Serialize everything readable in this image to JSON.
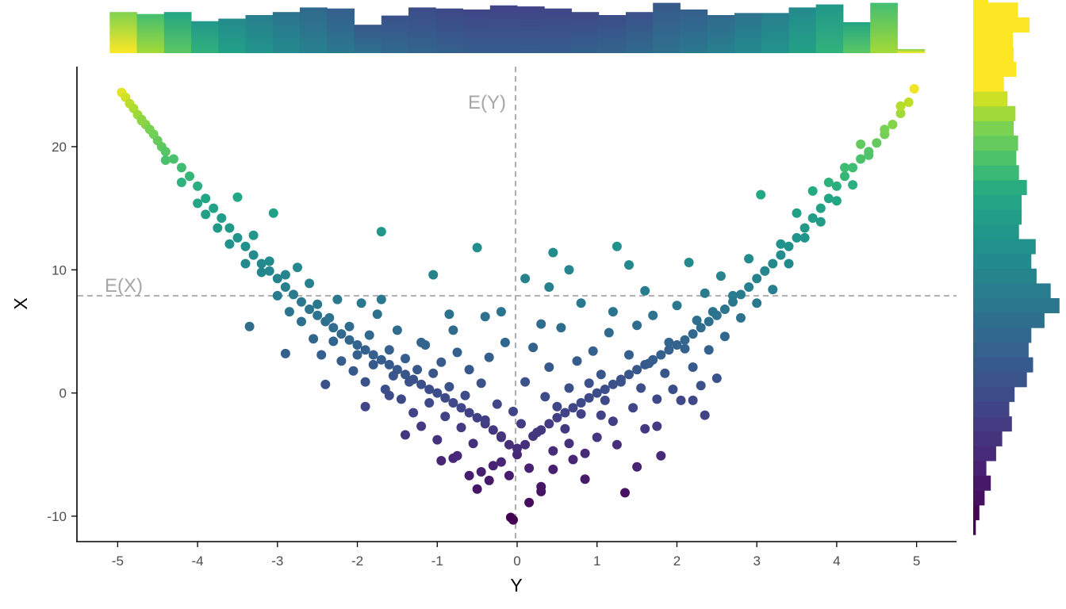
{
  "chart_data": {
    "type": "scatter",
    "subtype": "scatter with marginal histograms",
    "xlabel": "Y",
    "ylabel": "X",
    "xlim": [
      -5.5,
      5.5
    ],
    "ylim": [
      -12,
      26.5
    ],
    "xticks": [
      -5,
      -4,
      -3,
      -2,
      -1,
      0,
      1,
      2,
      3,
      4,
      5
    ],
    "yticks": [
      -10,
      0,
      10,
      20
    ],
    "grid": false,
    "legend": "none",
    "color_scale": "viridis",
    "color_mapped_to": "X",
    "reference_lines": [
      {
        "orientation": "vertical",
        "value": 0,
        "label": "E(Y)"
      },
      {
        "orientation": "horizontal",
        "value": 8,
        "label": "E(X)"
      }
    ],
    "relationship": "X ≈ Y^2 (approx., data spread below the curve near Y = 0)",
    "points": [
      [
        -4.95,
        24.4
      ],
      [
        -4.9,
        24
      ],
      [
        -4.85,
        23.5
      ],
      [
        -4.8,
        23.1
      ],
      [
        -4.75,
        22.6
      ],
      [
        -4.7,
        22.2
      ],
      [
        -4.65,
        21.8
      ],
      [
        -4.6,
        21.4
      ],
      [
        -4.55,
        21
      ],
      [
        -4.5,
        20.5
      ],
      [
        -4.45,
        20
      ],
      [
        -4.4,
        19.6
      ],
      [
        -4.3,
        19
      ],
      [
        -4.2,
        18.3
      ],
      [
        -4.1,
        17.6
      ],
      [
        -4,
        16.8
      ],
      [
        -3.9,
        15.8
      ],
      [
        -3.8,
        15
      ],
      [
        -3.7,
        14.2
      ],
      [
        -3.6,
        13.4
      ],
      [
        -3.5,
        12.6
      ],
      [
        -3.4,
        11.9
      ],
      [
        -3.3,
        11.2
      ],
      [
        -3.2,
        10.5
      ],
      [
        -3.1,
        9.9
      ],
      [
        -3,
        9.3
      ],
      [
        -2.9,
        8.6
      ],
      [
        -2.8,
        8
      ],
      [
        -2.7,
        7.4
      ],
      [
        -2.6,
        6.8
      ],
      [
        -2.5,
        6.3
      ],
      [
        -2.4,
        5.8
      ],
      [
        -2.3,
        5.3
      ],
      [
        -2.2,
        4.8
      ],
      [
        -2.1,
        4.3
      ],
      [
        -2,
        3.9
      ],
      [
        -1.9,
        3.5
      ],
      [
        -1.8,
        3.1
      ],
      [
        -1.7,
        2.7
      ],
      [
        -1.6,
        2.3
      ],
      [
        -1.5,
        1.9
      ],
      [
        -1.4,
        1.5
      ],
      [
        -1.3,
        1.1
      ],
      [
        -1.2,
        0.7
      ],
      [
        -1.1,
        0.3
      ],
      [
        -1,
        0
      ],
      [
        -0.9,
        -0.4
      ],
      [
        -0.8,
        -0.8
      ],
      [
        -0.7,
        -1.2
      ],
      [
        -0.6,
        -1.6
      ],
      [
        -0.5,
        -2
      ],
      [
        -0.4,
        -2.5
      ],
      [
        -0.3,
        -3
      ],
      [
        -0.2,
        -3.5
      ],
      [
        -0.1,
        -4.2
      ],
      [
        0,
        -5
      ],
      [
        0.1,
        -4.2
      ],
      [
        0.2,
        -3.5
      ],
      [
        0.3,
        -3
      ],
      [
        0.4,
        -2.5
      ],
      [
        0.5,
        -2
      ],
      [
        0.6,
        -1.6
      ],
      [
        0.7,
        -1.2
      ],
      [
        0.8,
        -0.8
      ],
      [
        0.9,
        -0.4
      ],
      [
        1,
        0
      ],
      [
        1.1,
        0.3
      ],
      [
        1.2,
        0.7
      ],
      [
        1.3,
        1.1
      ],
      [
        1.4,
        1.5
      ],
      [
        1.5,
        1.9
      ],
      [
        1.6,
        2.3
      ],
      [
        1.7,
        2.7
      ],
      [
        1.8,
        3.1
      ],
      [
        1.9,
        3.5
      ],
      [
        2,
        3.9
      ],
      [
        2.1,
        4.3
      ],
      [
        2.2,
        4.8
      ],
      [
        2.3,
        5.3
      ],
      [
        2.4,
        5.8
      ],
      [
        2.5,
        6.3
      ],
      [
        2.6,
        6.8
      ],
      [
        2.7,
        7.4
      ],
      [
        2.8,
        8
      ],
      [
        2.9,
        8.6
      ],
      [
        3,
        9.3
      ],
      [
        3.1,
        9.9
      ],
      [
        3.2,
        10.5
      ],
      [
        3.3,
        11.2
      ],
      [
        3.4,
        11.9
      ],
      [
        3.5,
        12.6
      ],
      [
        3.6,
        13.4
      ],
      [
        3.7,
        14.2
      ],
      [
        3.8,
        15
      ],
      [
        3.9,
        15.8
      ],
      [
        4,
        16.8
      ],
      [
        4.1,
        17.6
      ],
      [
        4.2,
        18.3
      ],
      [
        4.3,
        19
      ],
      [
        4.4,
        19.6
      ],
      [
        4.5,
        20.3
      ],
      [
        4.6,
        21
      ],
      [
        4.7,
        21.8
      ],
      [
        4.8,
        22.7
      ],
      [
        4.9,
        23.6
      ],
      [
        4.97,
        24.7
      ],
      [
        -4.7,
        22.1
      ],
      [
        -4.4,
        18.9
      ],
      [
        -4.2,
        17.1
      ],
      [
        -4,
        15.4
      ],
      [
        -3.9,
        14.5
      ],
      [
        -3.75,
        13.4
      ],
      [
        -3.6,
        12.1
      ],
      [
        -3.5,
        15.9
      ],
      [
        -3.4,
        10.5
      ],
      [
        -3.3,
        12.8
      ],
      [
        -3.2,
        9.8
      ],
      [
        -3.1,
        10.7
      ],
      [
        -3,
        7.9
      ],
      [
        -3.05,
        14.6
      ],
      [
        -2.9,
        9.6
      ],
      [
        -2.85,
        6.6
      ],
      [
        -2.75,
        10.2
      ],
      [
        -2.7,
        5.8
      ],
      [
        -2.6,
        8.9
      ],
      [
        -2.55,
        4.4
      ],
      [
        -2.5,
        7.2
      ],
      [
        -2.45,
        3.1
      ],
      [
        -2.35,
        6.1
      ],
      [
        -2.3,
        4.2
      ],
      [
        -2.25,
        7.6
      ],
      [
        -2.2,
        2.6
      ],
      [
        -2.1,
        5.4
      ],
      [
        -2.05,
        1.8
      ],
      [
        -2,
        3.1
      ],
      [
        -1.95,
        7.3
      ],
      [
        -1.9,
        0.9
      ],
      [
        -1.85,
        4.7
      ],
      [
        -1.8,
        2.3
      ],
      [
        -1.75,
        6.4
      ],
      [
        -1.7,
        13.1
      ],
      [
        -1.65,
        0.3
      ],
      [
        -1.6,
        3.5
      ],
      [
        -1.55,
        1.4
      ],
      [
        -1.5,
        5.1
      ],
      [
        -1.45,
        -0.5
      ],
      [
        -1.4,
        2.8
      ],
      [
        -1.35,
        0.9
      ],
      [
        -1.3,
        -1.6
      ],
      [
        -1.25,
        1.9
      ],
      [
        -1.2,
        -2.7
      ],
      [
        -1.15,
        3.9
      ],
      [
        -1.1,
        -0.8
      ],
      [
        -1.05,
        1.6
      ],
      [
        -1,
        -3.8
      ],
      [
        -0.95,
        2.5
      ],
      [
        -0.9,
        -1.9
      ],
      [
        -0.85,
        0.5
      ],
      [
        -0.8,
        -5.3
      ],
      [
        -0.75,
        3.3
      ],
      [
        -0.7,
        -2.8
      ],
      [
        -0.65,
        -0.2
      ],
      [
        -0.6,
        1.9
      ],
      [
        -0.55,
        -4.1
      ],
      [
        -0.5,
        -7.8
      ],
      [
        -0.45,
        0.8
      ],
      [
        -0.4,
        -2.2
      ],
      [
        -0.35,
        2.9
      ],
      [
        -0.3,
        -5.9
      ],
      [
        -0.25,
        -0.9
      ],
      [
        -0.2,
        -3.6
      ],
      [
        -0.15,
        4.1
      ],
      [
        -0.1,
        -6.7
      ],
      [
        -0.08,
        -10.1
      ],
      [
        -0.05,
        -1.5
      ],
      [
        0.05,
        -2.5
      ],
      [
        0.1,
        0.9
      ],
      [
        0.15,
        -6.1
      ],
      [
        0.2,
        3.7
      ],
      [
        0.25,
        -3.2
      ],
      [
        0.3,
        -8
      ],
      [
        0.35,
        -0.3
      ],
      [
        0.4,
        2.1
      ],
      [
        0.45,
        -4.7
      ],
      [
        0.5,
        -1.1
      ],
      [
        0.55,
        5.3
      ],
      [
        0.6,
        -2.9
      ],
      [
        0.65,
        0.4
      ],
      [
        0.7,
        -5.4
      ],
      [
        0.75,
        2.6
      ],
      [
        0.8,
        -1.7
      ],
      [
        0.85,
        -7
      ],
      [
        0.9,
        0.8
      ],
      [
        0.95,
        3.4
      ],
      [
        1,
        -3.6
      ],
      [
        1.05,
        1.5
      ],
      [
        1.1,
        -0.6
      ],
      [
        1.15,
        4.9
      ],
      [
        1.2,
        -2.3
      ],
      [
        1.25,
        11.9
      ],
      [
        1.3,
        0.9
      ],
      [
        1.35,
        -8.1
      ],
      [
        1.4,
        3.1
      ],
      [
        1.45,
        -1.2
      ],
      [
        1.5,
        5.5
      ],
      [
        1.55,
        0.4
      ],
      [
        1.6,
        -2.9
      ],
      [
        1.65,
        2.4
      ],
      [
        1.7,
        6.3
      ],
      [
        1.75,
        -0.5
      ],
      [
        1.8,
        -5.1
      ],
      [
        1.85,
        1.6
      ],
      [
        1.9,
        4.1
      ],
      [
        1.95,
        0.3
      ],
      [
        2,
        7.1
      ],
      [
        2.05,
        -0.6
      ],
      [
        2.1,
        3.6
      ],
      [
        2.15,
        10.6
      ],
      [
        2.2,
        2.1
      ],
      [
        2.25,
        5.9
      ],
      [
        2.3,
        0.6
      ],
      [
        2.35,
        8.1
      ],
      [
        2.4,
        3.5
      ],
      [
        2.45,
        6.6
      ],
      [
        2.5,
        1.2
      ],
      [
        2.55,
        9.5
      ],
      [
        2.6,
        4.6
      ],
      [
        2.7,
        7.9
      ],
      [
        2.8,
        6.1
      ],
      [
        2.9,
        10.9
      ],
      [
        3,
        7.3
      ],
      [
        3.05,
        16.1
      ],
      [
        3.1,
        9.9
      ],
      [
        3.2,
        8.4
      ],
      [
        3.3,
        12.1
      ],
      [
        3.4,
        10.5
      ],
      [
        3.5,
        14.6
      ],
      [
        3.6,
        12.6
      ],
      [
        3.7,
        16.4
      ],
      [
        3.8,
        13.9
      ],
      [
        3.9,
        17.1
      ],
      [
        4,
        15.6
      ],
      [
        4.1,
        18.3
      ],
      [
        4.2,
        16.9
      ],
      [
        4.3,
        20.2
      ],
      [
        4.4,
        19.3
      ],
      [
        4.6,
        21.4
      ],
      [
        4.8,
        23.3
      ],
      [
        -2.4,
        0.7
      ],
      [
        -1.9,
        -1.1
      ],
      [
        -1.6,
        -0.2
      ],
      [
        -1.4,
        -3.4
      ],
      [
        -0.95,
        -5.5
      ],
      [
        -0.75,
        -5.1
      ],
      [
        -0.6,
        -6.7
      ],
      [
        -0.45,
        -6.4
      ],
      [
        -0.35,
        -7.1
      ],
      [
        -0.2,
        -5.6
      ],
      [
        0,
        -4.5
      ],
      [
        0.3,
        -7.6
      ],
      [
        0.45,
        -6.2
      ],
      [
        0.65,
        -4.1
      ],
      [
        0.85,
        -4.9
      ],
      [
        1.05,
        -1.8
      ],
      [
        1.25,
        -4.2
      ],
      [
        1.5,
        -6
      ],
      [
        1.75,
        -2.7
      ],
      [
        0.15,
        -8.9
      ],
      [
        -0.05,
        -10.3
      ],
      [
        -0.4,
        6.2
      ],
      [
        0.1,
        9.3
      ],
      [
        0.4,
        8.6
      ],
      [
        0.65,
        10
      ],
      [
        -1.05,
        9.6
      ],
      [
        -0.5,
        11.8
      ],
      [
        0.45,
        11.4
      ],
      [
        -0.85,
        6.4
      ],
      [
        1.4,
        10.4
      ],
      [
        -1.2,
        4.1
      ],
      [
        -0.8,
        5.1
      ],
      [
        -0.2,
        6.6
      ],
      [
        0.3,
        5.6
      ],
      [
        0.8,
        7.3
      ],
      [
        1.2,
        6.6
      ],
      [
        1.6,
        8.3
      ],
      [
        -1.7,
        7.6
      ],
      [
        -2.9,
        3.2
      ],
      [
        -3.35,
        5.4
      ],
      [
        2.35,
        -1.8
      ],
      [
        2.2,
        -0.6
      ]
    ]
  },
  "top_histogram": {
    "axis": "Y",
    "bin_width": 0.34,
    "counts": [
      0.81,
      0.77,
      0.81,
      0.63,
      0.68,
      0.75,
      0.81,
      0.9,
      0.88,
      0.56,
      0.74,
      0.9,
      0.88,
      0.86,
      0.94,
      0.92,
      0.88,
      0.81,
      0.75,
      0.81,
      0.99,
      0.86,
      0.75,
      0.79,
      0.79,
      0.9,
      0.96,
      0.61,
      0.99,
      0.08
    ]
  },
  "right_histogram": {
    "axis": "X",
    "bin_width": 1.2,
    "counts": [
      0.03,
      0.07,
      0.13,
      0.2,
      0.15,
      0.26,
      0.33,
      0.44,
      0.41,
      0.47,
      0.61,
      0.68,
      0.63,
      0.66,
      0.81,
      0.98,
      0.88,
      0.72,
      0.66,
      0.71,
      0.52,
      0.55,
      0.55,
      0.61,
      0.52,
      0.49,
      0.51,
      0.46,
      0.48,
      0.39,
      0.35,
      0.49,
      0.46,
      0.45,
      0.64,
      0.51,
      0.17
    ]
  }
}
